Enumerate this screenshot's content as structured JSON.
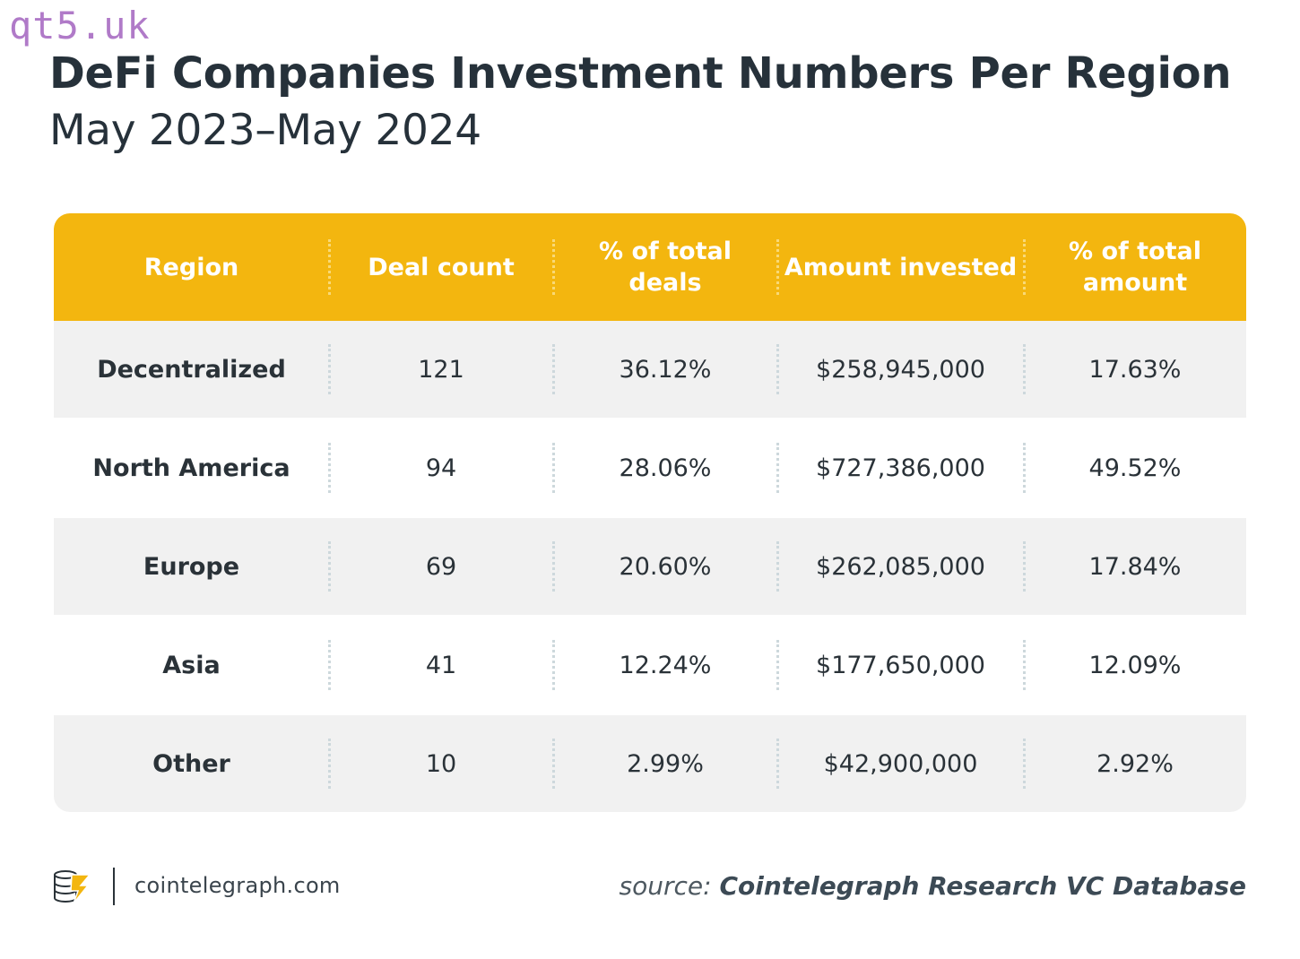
{
  "watermark": "qt5.uk",
  "chart_data": {
    "type": "table",
    "title": "DeFi Companies Investment Numbers Per Region",
    "subtitle": "May 2023–May 2024",
    "columns": [
      "Region",
      "Deal count",
      "% of total deals",
      "Amount invested",
      "% of total amount"
    ],
    "rows": [
      [
        "Decentralized",
        "121",
        "36.12%",
        "$258,945,000",
        "17.63%"
      ],
      [
        "North America",
        "94",
        "28.06%",
        "$727,386,000",
        "49.52%"
      ],
      [
        "Europe",
        "69",
        "20.60%",
        "$262,085,000",
        "17.84%"
      ],
      [
        "Asia",
        "41",
        "12.24%",
        "$177,650,000",
        "12.09%"
      ],
      [
        "Other",
        "10",
        "2.99%",
        "$42,900,000",
        "2.92%"
      ]
    ],
    "colors": {
      "header": "#f3b60f",
      "row_alt": "#f1f1f1",
      "text": "#2a3238"
    }
  },
  "footer": {
    "logo_icon": "cointelegraph-logo-icon",
    "site": "cointelegraph.com",
    "source_prefix": "source:",
    "source_name": "Cointelegraph Research VC Database"
  }
}
